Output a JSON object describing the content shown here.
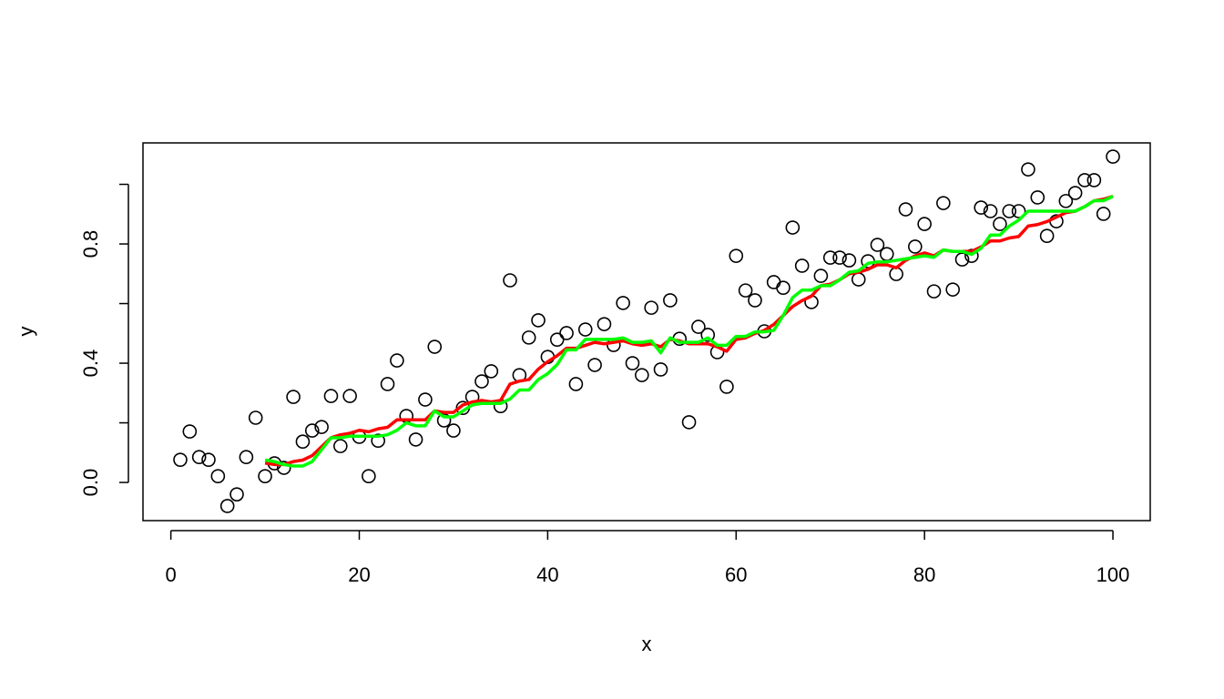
{
  "chart_data": {
    "type": "scatter",
    "xlabel": "x",
    "ylabel": "y",
    "xlim": [
      -2.96,
      103.96
    ],
    "ylim": [
      -0.128,
      1.139
    ],
    "xticks": [
      0,
      20,
      40,
      60,
      80,
      100
    ],
    "yticks": [
      {
        "value": 0,
        "label": "0.0"
      },
      {
        "value": 0.2,
        "label": null
      },
      {
        "value": 0.4,
        "label": "0.4"
      },
      {
        "value": 0.6,
        "label": null
      },
      {
        "value": 0.8,
        "label": "0.8"
      },
      {
        "value": 1.0,
        "label": null
      }
    ],
    "point_color": "#000000",
    "x": [
      1,
      2,
      3,
      4,
      5,
      6,
      7,
      8,
      9,
      10,
      11,
      12,
      13,
      14,
      15,
      16,
      17,
      18,
      19,
      20,
      21,
      22,
      23,
      24,
      25,
      26,
      27,
      28,
      29,
      30,
      31,
      32,
      33,
      34,
      35,
      36,
      37,
      38,
      39,
      40,
      41,
      42,
      43,
      44,
      45,
      46,
      47,
      48,
      49,
      50,
      51,
      52,
      53,
      54,
      55,
      56,
      57,
      58,
      59,
      60,
      61,
      62,
      63,
      64,
      65,
      66,
      67,
      68,
      69,
      70,
      71,
      72,
      73,
      74,
      75,
      76,
      77,
      78,
      79,
      80,
      81,
      82,
      83,
      84,
      85,
      86,
      87,
      88,
      89,
      90,
      91,
      92,
      93,
      94,
      95,
      96,
      97,
      98,
      99,
      100
    ],
    "y": [
      0.076,
      0.171,
      0.085,
      0.076,
      0.021,
      -0.079,
      -0.04,
      0.085,
      0.217,
      0.021,
      0.064,
      0.049,
      0.287,
      0.137,
      0.174,
      0.186,
      0.29,
      0.122,
      0.29,
      0.153,
      0.021,
      0.14,
      0.33,
      0.409,
      0.223,
      0.144,
      0.278,
      0.455,
      0.208,
      0.174,
      0.25,
      0.287,
      0.339,
      0.373,
      0.256,
      0.678,
      0.36,
      0.486,
      0.544,
      0.421,
      0.479,
      0.501,
      0.33,
      0.513,
      0.394,
      0.531,
      0.461,
      0.602,
      0.4,
      0.36,
      0.586,
      0.379,
      0.611,
      0.482,
      0.202,
      0.522,
      0.495,
      0.437,
      0.321,
      0.76,
      0.644,
      0.611,
      0.507,
      0.672,
      0.653,
      0.855,
      0.727,
      0.605,
      0.693,
      0.754,
      0.754,
      0.745,
      0.681,
      0.742,
      0.797,
      0.766,
      0.699,
      0.916,
      0.791,
      0.867,
      0.641,
      0.937,
      0.647,
      0.748,
      0.76,
      0.922,
      0.91,
      0.867,
      0.91,
      0.91,
      1.05,
      0.956,
      0.827,
      0.876,
      0.944,
      0.971,
      1.014,
      1.014,
      0.901,
      1.093
    ],
    "lines": [
      {
        "color": "#ff0000",
        "x": [
          10,
          11,
          12,
          13,
          14,
          15,
          16,
          17,
          18,
          19,
          20,
          21,
          22,
          23,
          24,
          25,
          26,
          27,
          28,
          29,
          30,
          31,
          32,
          33,
          34,
          35,
          36,
          37,
          38,
          39,
          40,
          41,
          42,
          43,
          44,
          45,
          46,
          47,
          48,
          49,
          50,
          51,
          52,
          53,
          54,
          55,
          56,
          57,
          58,
          59,
          60,
          61,
          62,
          63,
          64,
          65,
          66,
          67,
          68,
          69,
          70,
          71,
          72,
          73,
          74,
          75,
          76,
          77,
          78,
          79,
          80,
          81,
          82,
          83,
          84,
          85,
          86,
          87,
          88,
          89,
          90,
          91,
          92,
          93,
          94,
          95,
          96,
          97,
          98,
          99,
          100
        ],
        "values": [
          0.065,
          0.06,
          0.06,
          0.07,
          0.075,
          0.09,
          0.12,
          0.15,
          0.16,
          0.165,
          0.175,
          0.17,
          0.18,
          0.185,
          0.21,
          0.21,
          0.21,
          0.21,
          0.24,
          0.235,
          0.235,
          0.26,
          0.27,
          0.275,
          0.27,
          0.275,
          0.33,
          0.34,
          0.345,
          0.38,
          0.405,
          0.425,
          0.45,
          0.45,
          0.46,
          0.47,
          0.465,
          0.47,
          0.475,
          0.465,
          0.46,
          0.465,
          0.455,
          0.48,
          0.475,
          0.465,
          0.465,
          0.465,
          0.455,
          0.44,
          0.48,
          0.485,
          0.5,
          0.51,
          0.53,
          0.56,
          0.59,
          0.61,
          0.625,
          0.66,
          0.665,
          0.68,
          0.7,
          0.705,
          0.715,
          0.73,
          0.73,
          0.72,
          0.745,
          0.76,
          0.77,
          0.76,
          0.78,
          0.775,
          0.775,
          0.775,
          0.79,
          0.81,
          0.81,
          0.82,
          0.825,
          0.86,
          0.865,
          0.875,
          0.89,
          0.905,
          0.91,
          0.925,
          0.945,
          0.95,
          0.96
        ]
      },
      {
        "color": "#00ff00",
        "x": [
          10,
          11,
          12,
          13,
          14,
          15,
          16,
          17,
          18,
          19,
          20,
          21,
          22,
          23,
          24,
          25,
          26,
          27,
          28,
          29,
          30,
          31,
          32,
          33,
          34,
          35,
          36,
          37,
          38,
          39,
          40,
          41,
          42,
          43,
          44,
          45,
          46,
          47,
          48,
          49,
          50,
          51,
          52,
          53,
          54,
          55,
          56,
          57,
          58,
          59,
          60,
          61,
          62,
          63,
          64,
          65,
          66,
          67,
          68,
          69,
          70,
          71,
          72,
          73,
          74,
          75,
          76,
          77,
          78,
          79,
          80,
          81,
          82,
          83,
          84,
          85,
          86,
          87,
          88,
          89,
          90,
          91,
          92,
          93,
          94,
          95,
          96,
          97,
          98,
          99,
          100
        ],
        "values": [
          0.075,
          0.07,
          0.06,
          0.055,
          0.055,
          0.07,
          0.11,
          0.15,
          0.15,
          0.155,
          0.155,
          0.155,
          0.155,
          0.16,
          0.175,
          0.2,
          0.19,
          0.19,
          0.24,
          0.22,
          0.22,
          0.24,
          0.26,
          0.265,
          0.265,
          0.265,
          0.28,
          0.31,
          0.31,
          0.345,
          0.365,
          0.395,
          0.445,
          0.445,
          0.48,
          0.48,
          0.48,
          0.48,
          0.485,
          0.47,
          0.47,
          0.475,
          0.435,
          0.485,
          0.47,
          0.47,
          0.47,
          0.485,
          0.46,
          0.46,
          0.49,
          0.49,
          0.505,
          0.505,
          0.51,
          0.56,
          0.62,
          0.645,
          0.645,
          0.66,
          0.66,
          0.68,
          0.705,
          0.71,
          0.735,
          0.74,
          0.74,
          0.745,
          0.75,
          0.755,
          0.76,
          0.755,
          0.78,
          0.775,
          0.775,
          0.765,
          0.785,
          0.83,
          0.83,
          0.86,
          0.88,
          0.91,
          0.91,
          0.91,
          0.91,
          0.91,
          0.91,
          0.925,
          0.945,
          0.945,
          0.96
        ]
      }
    ]
  }
}
